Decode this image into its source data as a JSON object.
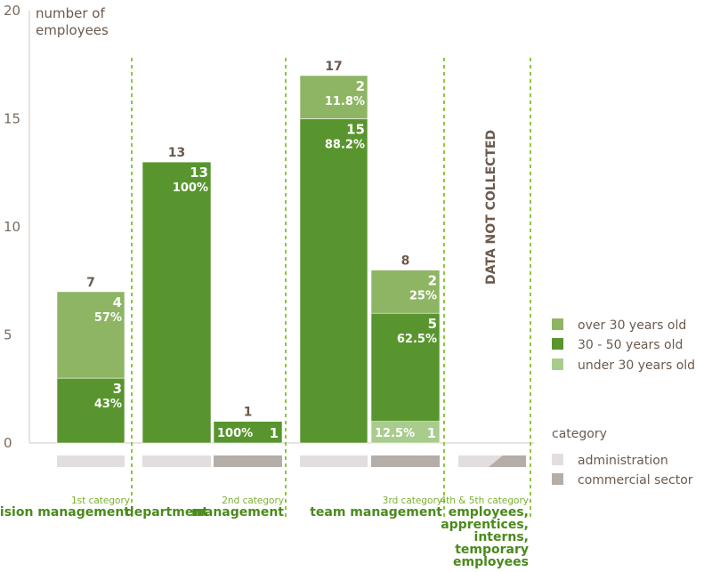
{
  "colors": {
    "over_30": "#8db563",
    "mid": "#58952e",
    "under_30": "#a8cc8c",
    "administration": "#e2dede",
    "commercial": "#b4ada8",
    "divider": "#8dc63f",
    "text": "#6b5a4e"
  },
  "chart_data": {
    "type": "bar",
    "stacked": true,
    "ylabel": "number of employees",
    "xlabel": "category",
    "ylim": [
      0,
      20
    ],
    "yticks": [
      0,
      5,
      10,
      15,
      20
    ],
    "bars": [
      {
        "group": 0,
        "sector": "administration",
        "total": "7",
        "segments": [
          {
            "series": "30 - 50 years old",
            "value": 3,
            "count": "3",
            "pct": "43%"
          },
          {
            "series": "over 30 years old",
            "value": 4,
            "count": "4",
            "pct": "57%"
          }
        ]
      },
      {
        "group": 1,
        "sector": "administration",
        "total": "13",
        "segments": [
          {
            "series": "30 - 50 years old",
            "value": 13,
            "count": "13",
            "pct": "100%"
          }
        ]
      },
      {
        "group": 1,
        "sector": "commercial",
        "total": "1",
        "segments": [
          {
            "series": "30 - 50 years old",
            "value": 1,
            "count": "1",
            "pct": "100%"
          }
        ]
      },
      {
        "group": 2,
        "sector": "administration",
        "total": "17",
        "segments": [
          {
            "series": "30 - 50 years old",
            "value": 15,
            "count": "15",
            "pct": "88.2%"
          },
          {
            "series": "over 30 years old",
            "value": 2,
            "count": "2",
            "pct": "11.8%"
          }
        ]
      },
      {
        "group": 2,
        "sector": "commercial",
        "total": "8",
        "segments": [
          {
            "series": "under 30 years old",
            "value": 1,
            "count": "1",
            "pct": "12.5%"
          },
          {
            "series": "30 - 50 years old",
            "value": 5,
            "count": "5",
            "pct": "62.5%"
          },
          {
            "series": "over 30 years old",
            "value": 2,
            "count": "2",
            "pct": "25%"
          }
        ]
      }
    ],
    "groups": [
      {
        "small": "1st category",
        "big": [
          "division management"
        ]
      },
      {
        "small": "2nd category",
        "big": [
          "department",
          "management"
        ]
      },
      {
        "small": "3rd category",
        "big": [
          "team management"
        ]
      },
      {
        "small": "4th & 5th category",
        "big": [
          "employees,",
          "apprentices,",
          "interns,",
          "temporary",
          "employees"
        ]
      }
    ],
    "no_data_label": "DATA NOT COLLECTED",
    "legend": {
      "age": [
        "over 30 years old",
        "30 - 50 years old",
        "under 30 years old"
      ],
      "sector_title": "category",
      "sector": [
        "administration",
        "commercial sector"
      ]
    }
  }
}
